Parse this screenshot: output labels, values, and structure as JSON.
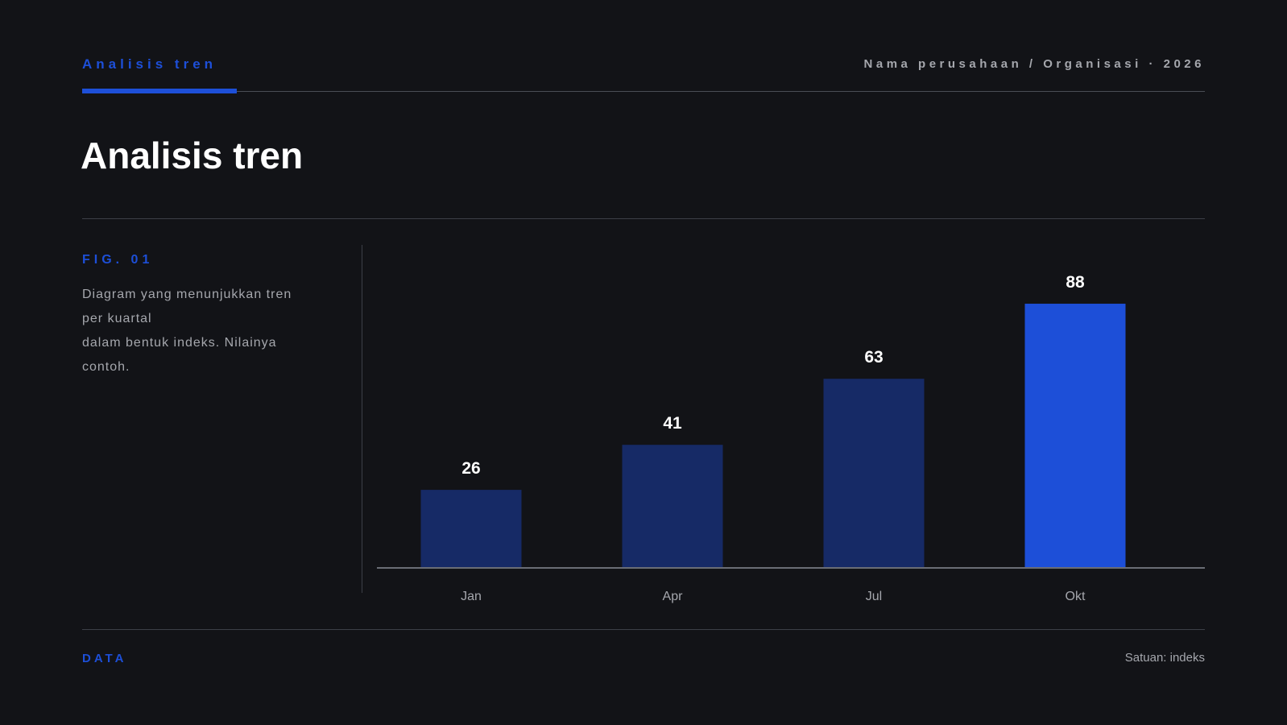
{
  "header": {
    "section_label": "Analisis tren",
    "org_label": "Nama perusahaan / Organisasi · 2026"
  },
  "page_title": "Analisis tren",
  "figure": {
    "label": "FIG. 01",
    "description_lines": [
      "Diagram yang menunjukkan tren",
      "per kuartal",
      "dalam bentuk indeks. Nilainya",
      "contoh."
    ]
  },
  "footer": {
    "data_label": "DATA",
    "unit_label": "Satuan: indeks"
  },
  "colors": {
    "background": "#121317",
    "accent": "#1d4fd8",
    "bar_muted": "#162a66",
    "text_muted": "#a5a7ad"
  },
  "chart_data": {
    "type": "bar",
    "categories": [
      "Jan",
      "Apr",
      "Jul",
      "Okt"
    ],
    "values": [
      26,
      41,
      63,
      88
    ],
    "highlight_index": 3,
    "ylim": [
      0,
      100
    ],
    "grid": false,
    "data_labels": true
  }
}
